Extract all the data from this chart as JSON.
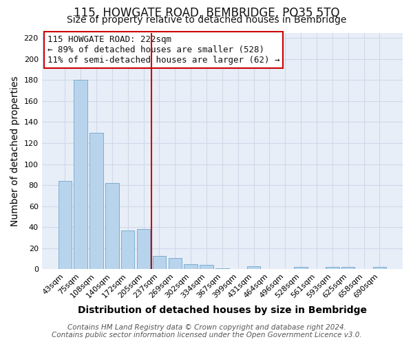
{
  "title": "115, HOWGATE ROAD, BEMBRIDGE, PO35 5TQ",
  "subtitle": "Size of property relative to detached houses in Bembridge",
  "xlabel": "Distribution of detached houses by size in Bembridge",
  "ylabel": "Number of detached properties",
  "bar_labels": [
    "43sqm",
    "75sqm",
    "108sqm",
    "140sqm",
    "172sqm",
    "205sqm",
    "237sqm",
    "269sqm",
    "302sqm",
    "334sqm",
    "367sqm",
    "399sqm",
    "431sqm",
    "464sqm",
    "496sqm",
    "528sqm",
    "561sqm",
    "593sqm",
    "625sqm",
    "658sqm",
    "690sqm"
  ],
  "bar_values": [
    84,
    180,
    130,
    82,
    37,
    38,
    13,
    11,
    5,
    4,
    1,
    0,
    3,
    0,
    0,
    2,
    0,
    2,
    2,
    0,
    2
  ],
  "bar_color": "#b8d4ec",
  "bar_edge_color": "#7aaed0",
  "vline_x": 5.5,
  "vline_color": "#cc0000",
  "annotation_line1": "115 HOWGATE ROAD: 222sqm",
  "annotation_line2": "← 89% of detached houses are smaller (528)",
  "annotation_line3": "11% of semi-detached houses are larger (62) →",
  "annotation_box_color": "#ffffff",
  "annotation_box_edge_color": "#cc0000",
  "ylim": [
    0,
    225
  ],
  "yticks": [
    0,
    20,
    40,
    60,
    80,
    100,
    120,
    140,
    160,
    180,
    200,
    220
  ],
  "footer_line1": "Contains HM Land Registry data © Crown copyright and database right 2024.",
  "footer_line2": "Contains public sector information licensed under the Open Government Licence v3.0.",
  "grid_color": "#d0d8e8",
  "plot_bg_color": "#e8eef8",
  "fig_bg_color": "#ffffff",
  "title_fontsize": 12,
  "subtitle_fontsize": 10,
  "axis_label_fontsize": 10,
  "tick_fontsize": 8,
  "annotation_fontsize": 9,
  "footer_fontsize": 7.5
}
